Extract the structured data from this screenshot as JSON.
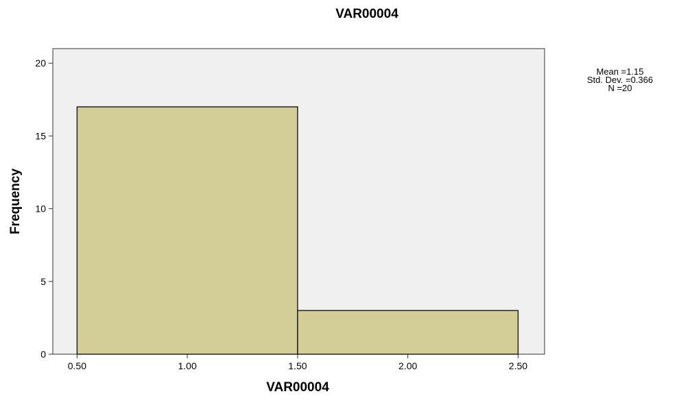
{
  "chart_data": {
    "type": "bar",
    "title": "VAR00004",
    "xlabel": "VAR00004",
    "ylabel": "Frequency",
    "bins": [
      {
        "start": 0.5,
        "end": 1.5,
        "count": 17
      },
      {
        "start": 1.5,
        "end": 2.5,
        "count": 3
      }
    ],
    "x_ticks": [
      "0.50",
      "1.00",
      "1.50",
      "2.00",
      "2.50"
    ],
    "y_ticks": [
      "0",
      "5",
      "10",
      "15",
      "20"
    ],
    "xlim": [
      0.39,
      2.62
    ],
    "ylim": [
      0,
      21
    ],
    "stats": {
      "mean": "Mean =1.15",
      "std": "Std. Dev. =0.366",
      "n": "N =20"
    },
    "colors": {
      "bar_fill": "#d3cd97",
      "bar_stroke": "#222222",
      "plot_background": "#f0f0f0"
    }
  }
}
